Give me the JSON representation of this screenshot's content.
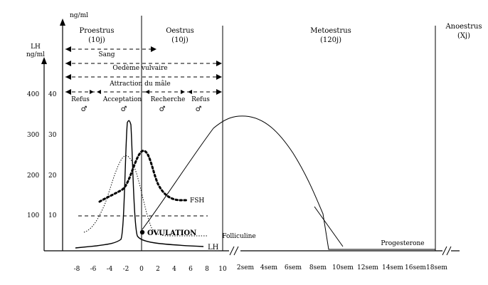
{
  "phases": [
    {
      "name": "Proestrus",
      "duration": "(10j)"
    },
    {
      "name": "Oestrus",
      "duration": "(10j)"
    },
    {
      "name": "Metoestrus",
      "duration": "(120j)"
    },
    {
      "name": "Anoestrus",
      "duration": "(Xj)"
    }
  ],
  "axes": {
    "left_outer_unit": "LH\nng/ml",
    "left_inner_unit": "ng/ml",
    "y_outer_ticks": [
      "400",
      "300",
      "200",
      "100"
    ],
    "y_inner_ticks": [
      "40",
      "30",
      "20",
      "10"
    ],
    "x_days": [
      "-8",
      "-6",
      "-4",
      "-2",
      "0",
      "2",
      "4",
      "6",
      "8",
      "10"
    ],
    "x_weeks": [
      "2sem",
      "4sem",
      "6sem",
      "8sem",
      "10sem",
      "12sem",
      "14sem",
      "16sem",
      "18sem"
    ]
  },
  "spans": [
    {
      "label": "Sang"
    },
    {
      "label": "Oedème vulvaire"
    },
    {
      "label": ""
    },
    {
      "label": "Attraction du mâle"
    },
    {
      "label": ""
    }
  ],
  "behaviors": [
    {
      "label": "Refus",
      "symbol": "♂"
    },
    {
      "label": "Acceptation",
      "symbol": "♂"
    },
    {
      "label": "Recherche",
      "symbol": "♂"
    },
    {
      "label": "Refus",
      "symbol": "♂"
    }
  ],
  "curves": {
    "fsh": "FSH",
    "lh": "LH",
    "follicle": "Folliculine",
    "progesterone": "Progesterone"
  },
  "event": "OVULATION",
  "colors": {
    "ink": "#000000",
    "background": "#ffffff"
  }
}
